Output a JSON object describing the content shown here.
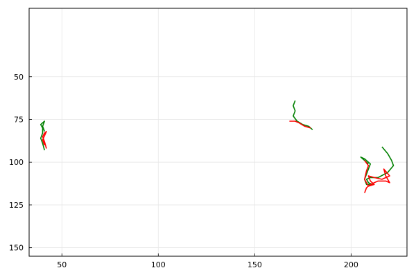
{
  "chart_data": {
    "type": "line",
    "xlim": [
      33,
      229
    ],
    "ylim": [
      155,
      10
    ],
    "y_inverted": true,
    "xticks": [
      50,
      100,
      150,
      200
    ],
    "yticks": [
      50,
      75,
      100,
      125,
      150
    ],
    "grid": true,
    "legend": "none",
    "series": [
      {
        "color": "#008000",
        "segments": [
          [
            [
              41,
              93
            ],
            [
              40,
              89
            ],
            [
              39,
              86
            ],
            [
              40,
              83
            ],
            [
              40,
              80
            ],
            [
              39,
              78
            ],
            [
              40,
              77
            ],
            [
              41,
              76
            ],
            [
              40,
              79
            ],
            [
              41,
              82
            ]
          ],
          [
            [
              171,
              64
            ],
            [
              170,
              67
            ],
            [
              171,
              70
            ],
            [
              170,
              73
            ],
            [
              172,
              76
            ],
            [
              175,
              78
            ],
            [
              178,
              79
            ],
            [
              180,
              81
            ]
          ],
          [
            [
              216,
              91
            ],
            [
              219,
              95
            ],
            [
              221,
              99
            ],
            [
              222,
              102
            ],
            [
              219,
              106
            ],
            [
              214,
              109
            ],
            [
              210,
              109
            ],
            [
              208,
              110
            ],
            [
              209,
              112
            ],
            [
              211,
              113
            ],
            [
              208,
              113
            ],
            [
              207,
              110
            ],
            [
              208,
              107
            ],
            [
              209,
              104
            ],
            [
              210,
              101
            ],
            [
              207,
              98
            ],
            [
              205,
              97
            ],
            [
              209,
              101
            ]
          ]
        ]
      },
      {
        "color": "#ff0000",
        "segments": [
          [
            [
              42,
              92
            ],
            [
              41,
              88
            ],
            [
              40,
              85
            ],
            [
              41,
              83
            ],
            [
              42,
              82
            ],
            [
              40,
              87
            ],
            [
              41,
              90
            ]
          ],
          [
            [
              168,
              76
            ],
            [
              171,
              76
            ],
            [
              173,
              77
            ],
            [
              176,
              79
            ],
            [
              179,
              80
            ]
          ],
          [
            [
              207,
              118
            ],
            [
              208,
              115
            ],
            [
              210,
              113
            ],
            [
              212,
              112
            ],
            [
              214,
              111
            ],
            [
              218,
              111
            ],
            [
              220,
              112
            ],
            [
              218,
              108
            ],
            [
              217,
              104
            ],
            [
              220,
              108
            ],
            [
              216,
              110
            ],
            [
              212,
              109
            ],
            [
              209,
              108
            ],
            [
              210,
              111
            ],
            [
              212,
              113
            ],
            [
              209,
              114
            ],
            [
              207,
              110
            ],
            [
              208,
              105
            ],
            [
              209,
              102
            ],
            [
              207,
              99
            ]
          ]
        ]
      }
    ]
  }
}
